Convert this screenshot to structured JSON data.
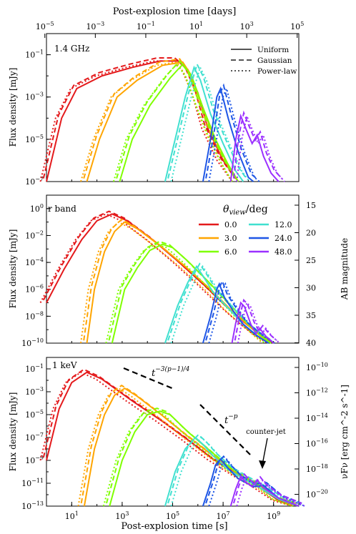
{
  "figure": {
    "top_xlabel": "Post-explosion time [days]",
    "bottom_xlabel": "Post-explosion time [s]"
  },
  "chart_data": [
    {
      "type": "line",
      "panel_label": "1.4 GHz",
      "xlabel": "Post-explosion time [days]",
      "ylabel": "Flux density [mJy]",
      "xscale": "log",
      "yscale": "log",
      "xlim_days": [
        1e-05,
        100000.0
      ],
      "xticks": [
        "10^-5",
        "10^-3",
        "10^-1",
        "10^1",
        "10^3",
        "10^5"
      ],
      "ylim": [
        1e-07,
        1
      ],
      "yticks": [
        "10^-1",
        "10^-3",
        "10^-5",
        "10^-7"
      ],
      "legend": {
        "location": "top-right",
        "entries": [
          "Uniform",
          "Gaussian",
          "Power-law"
        ],
        "styles": [
          "solid",
          "dashed",
          "dotted"
        ]
      },
      "series": [
        {
          "name": "0.0",
          "color": "#e41a1c",
          "peak_t_days": 1.0,
          "peak_flux": 0.05,
          "rise_from_t_days": 1e-05
        },
        {
          "name": "3.0",
          "color": "#ffa500",
          "peak_t_days": 2.0,
          "peak_flux": 0.045,
          "rise_from_t_days": 0.0003
        },
        {
          "name": "6.0",
          "color": "#7fff00",
          "peak_t_days": 3.0,
          "peak_flux": 0.04,
          "rise_from_t_days": 0.02
        },
        {
          "name": "12.0",
          "color": "#40e0d0",
          "peak_t_days": 8.0,
          "peak_flux": 0.03,
          "rise_from_t_days": 1.0
        },
        {
          "name": "24.0",
          "color": "#1e56e6",
          "peak_t_days": 40.0,
          "peak_flux": 0.004,
          "rise_from_t_days": 10.0
        },
        {
          "name": "48.0",
          "color": "#9b30ff",
          "peak_t_days": 200.0,
          "peak_flux": 0.0002,
          "rise_from_t_days": 100.0
        }
      ]
    },
    {
      "type": "line",
      "panel_label": "r band",
      "ylabel": "Flux density [mJy]",
      "y2label": "AB magnitude",
      "xscale": "log",
      "yscale": "log",
      "ylim": [
        1e-10,
        10.0
      ],
      "yticks": [
        "10^0",
        "10^-2",
        "10^-4",
        "10^-6",
        "10^-8",
        "10^-10"
      ],
      "y2ticks": [
        "15",
        "20",
        "25",
        "30",
        "35",
        "40"
      ],
      "legend": {
        "location": "top-right",
        "title": "θview/deg",
        "entries": [
          "0.0",
          "3.0",
          "6.0",
          "12.0",
          "24.0",
          "48.0"
        ]
      },
      "series": [
        {
          "name": "0.0",
          "color": "#e41a1c",
          "peak_t_days": 0.1,
          "peak_flux": 0.5
        },
        {
          "name": "3.0",
          "color": "#ffa500",
          "peak_t_days": 0.3,
          "peak_flux": 0.1
        },
        {
          "name": "6.0",
          "color": "#7fff00",
          "peak_t_days": 1.0,
          "peak_flux": 0.003
        },
        {
          "name": "12.0",
          "color": "#40e0d0",
          "peak_t_days": 10.0,
          "peak_flux": 1e-05
        },
        {
          "name": "24.0",
          "color": "#1e56e6",
          "peak_t_days": 50.0,
          "peak_flux": 3e-06
        },
        {
          "name": "48.0",
          "color": "#9b30ff",
          "peak_t_days": 150.0,
          "peak_flux": 3e-07
        }
      ]
    },
    {
      "type": "line",
      "panel_label": "1 keV",
      "xlabel": "Post-explosion time [s]",
      "ylabel": "Flux density [mJy]",
      "y2label": "νFν [erg cm^-2 s^-1]",
      "xscale": "log",
      "yscale": "log",
      "xlim_s": [
        1,
        10000000000.0
      ],
      "xticks": [
        "10^1",
        "10^3",
        "10^5",
        "10^7",
        "10^9"
      ],
      "ylim": [
        1e-13,
        1
      ],
      "yticks": [
        "10^-1",
        "10^-3",
        "10^-5",
        "10^-7",
        "10^-9",
        "10^-11",
        "10^-13"
      ],
      "y2ticks": [
        "10^-10",
        "10^-12",
        "10^-14",
        "10^-16",
        "10^-18",
        "10^-20"
      ],
      "annotations": [
        "t^{-3(p-1)/4}",
        "t^{-p}",
        "counter-jet"
      ],
      "series": [
        {
          "name": "0.0",
          "color": "#e41a1c",
          "peak_t_s": 40,
          "peak_flux": 0.03
        },
        {
          "name": "3.0",
          "color": "#ffa500",
          "peak_t_s": 400,
          "peak_flux": 0.002
        },
        {
          "name": "6.0",
          "color": "#7fff00",
          "peak_t_s": 5000,
          "peak_flux": 2e-05
        },
        {
          "name": "12.0",
          "color": "#40e0d0",
          "peak_t_s": 1000000.0,
          "peak_flux": 3e-08
        },
        {
          "name": "24.0",
          "color": "#1e56e6",
          "peak_t_s": 3000000.0,
          "peak_flux": 3e-09
        },
        {
          "name": "48.0",
          "color": "#9b30ff",
          "peak_t_s": 20000000.0,
          "peak_flux": 3e-10
        }
      ]
    }
  ]
}
